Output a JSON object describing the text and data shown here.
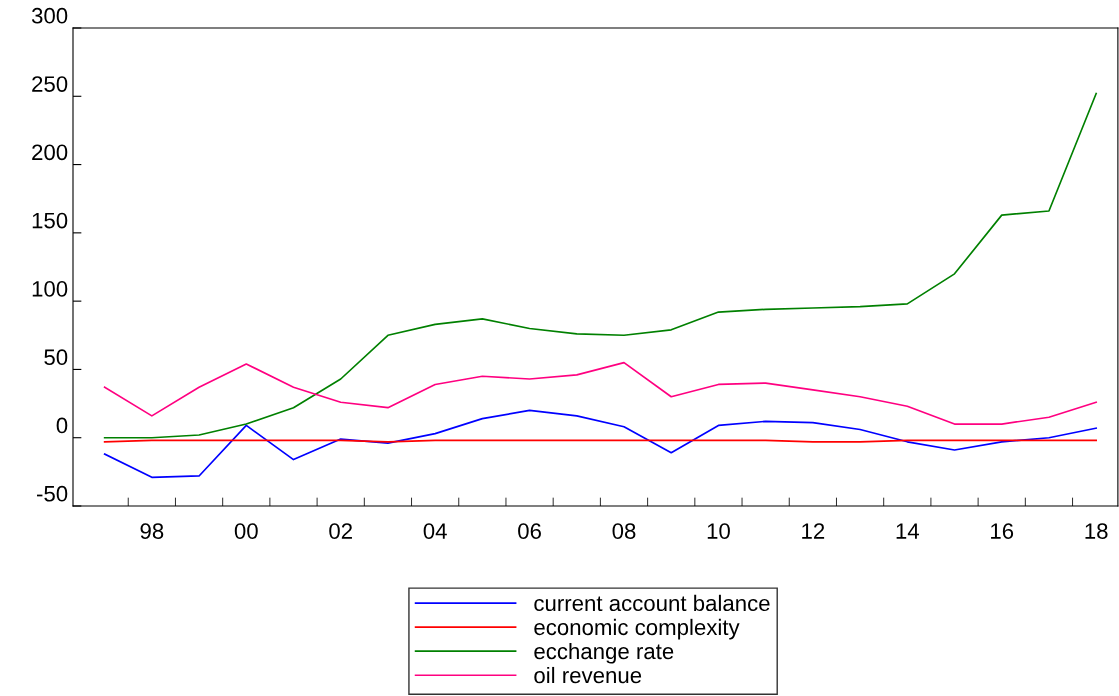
{
  "chart_data": {
    "type": "line",
    "x": [
      1997,
      1998,
      1999,
      2000,
      2001,
      2002,
      2003,
      2004,
      2005,
      2006,
      2007,
      2008,
      2009,
      2010,
      2011,
      2012,
      2013,
      2014,
      2015,
      2016,
      2017,
      2018
    ],
    "series": [
      {
        "name": "current account balance",
        "color": "#0000ff",
        "values": [
          -12,
          -29,
          -28,
          9,
          -16,
          -1,
          -4,
          3,
          14,
          20,
          16,
          8,
          -11,
          9,
          12,
          11,
          6,
          -3,
          -9,
          -3,
          0,
          7
        ]
      },
      {
        "name": "economic complexity",
        "color": "#ff0000",
        "values": [
          -3,
          -2,
          -2,
          -2,
          -2,
          -2,
          -3,
          -2,
          -2,
          -2,
          -2,
          -2,
          -2,
          -2,
          -2,
          -3,
          -3,
          -2,
          -2,
          -2,
          -2,
          -2
        ]
      },
      {
        "name": "ecchange rate",
        "color": "#008000",
        "values": [
          0,
          0,
          2,
          10,
          22,
          43,
          75,
          83,
          87,
          80,
          76,
          75,
          79,
          92,
          94,
          95,
          96,
          98,
          120,
          163,
          166,
          252
        ]
      },
      {
        "name": "oil revenue",
        "color": "#ff0080",
        "values": [
          37,
          16,
          37,
          54,
          37,
          26,
          22,
          39,
          45,
          43,
          46,
          55,
          30,
          39,
          40,
          35,
          30,
          23,
          10,
          10,
          15,
          26
        ]
      }
    ],
    "xlim": [
      1996.33,
      2018.46
    ],
    "xticks": [
      {
        "value": 1997.5,
        "label": null
      },
      {
        "value": 1998,
        "label": "98"
      },
      {
        "value": 1998.5,
        "label": null
      },
      {
        "value": 1999.5,
        "label": null
      },
      {
        "value": 2000,
        "label": "00"
      },
      {
        "value": 2000.5,
        "label": null
      },
      {
        "value": 2001.5,
        "label": null
      },
      {
        "value": 2002,
        "label": "02"
      },
      {
        "value": 2002.5,
        "label": null
      },
      {
        "value": 2003.5,
        "label": null
      },
      {
        "value": 2004,
        "label": "04"
      },
      {
        "value": 2004.5,
        "label": null
      },
      {
        "value": 2005.5,
        "label": null
      },
      {
        "value": 2006,
        "label": "06"
      },
      {
        "value": 2006.5,
        "label": null
      },
      {
        "value": 2007.5,
        "label": null
      },
      {
        "value": 2008,
        "label": "08"
      },
      {
        "value": 2008.5,
        "label": null
      },
      {
        "value": 2009.5,
        "label": null
      },
      {
        "value": 2010,
        "label": "10"
      },
      {
        "value": 2010.5,
        "label": null
      },
      {
        "value": 2011.5,
        "label": null
      },
      {
        "value": 2012,
        "label": "12"
      },
      {
        "value": 2012.5,
        "label": null
      },
      {
        "value": 2013.5,
        "label": null
      },
      {
        "value": 2014,
        "label": "14"
      },
      {
        "value": 2014.5,
        "label": null
      },
      {
        "value": 2015.5,
        "label": null
      },
      {
        "value": 2016,
        "label": "16"
      },
      {
        "value": 2016.5,
        "label": null
      },
      {
        "value": 2017.5,
        "label": null
      },
      {
        "value": 2018,
        "label": "18"
      }
    ],
    "ylim": [
      -50,
      300
    ],
    "yticks": [
      -50,
      0,
      50,
      100,
      150,
      200,
      250,
      300
    ],
    "grid": false,
    "legend": "bottom",
    "marker": "none",
    "line_style": "solid"
  }
}
